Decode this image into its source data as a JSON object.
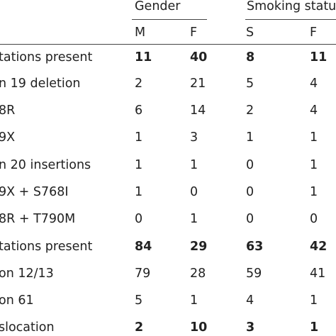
{
  "header": {
    "group_gender": "Gender",
    "group_smoking": "Smoking status",
    "sub_m": "M",
    "sub_f": "F",
    "sub_s": "S",
    "sub_sf": "F"
  },
  "rows": [
    {
      "label": "tations present",
      "m": "11",
      "f": "40",
      "s": "8",
      "sf": "11",
      "bold": true
    },
    {
      "label": "n 19 deletion",
      "m": "2",
      "f": "21",
      "s": "5",
      "sf": "4",
      "bold": false
    },
    {
      "label": "8R",
      "m": "6",
      "f": "14",
      "s": "2",
      "sf": "4",
      "bold": false
    },
    {
      "label": "9X",
      "m": "1",
      "f": "3",
      "s": "1",
      "sf": "1",
      "bold": false
    },
    {
      "label": "n 20 insertions",
      "m": "1",
      "f": "1",
      "s": "0",
      "sf": "1",
      "bold": false
    },
    {
      "label": "9X + S768I",
      "m": "1",
      "f": "0",
      "s": "0",
      "sf": "1",
      "bold": false
    },
    {
      "label": "8R + T790M",
      "m": "0",
      "f": "1",
      "s": "0",
      "sf": "0",
      "bold": false
    },
    {
      "label": "tations present",
      "m": "84",
      "f": "29",
      "s": "63",
      "sf": "42",
      "bold": true
    },
    {
      "label": "on 12/13",
      "m": "79",
      "f": "28",
      "s": "59",
      "sf": "41",
      "bold": false
    },
    {
      "label": "on 61",
      "m": "5",
      "f": "1",
      "s": "4",
      "sf": "1",
      "bold": false
    },
    {
      "label": "slocation",
      "m": "2",
      "f": "10",
      "s": "3",
      "sf": "1",
      "bold": true
    }
  ]
}
